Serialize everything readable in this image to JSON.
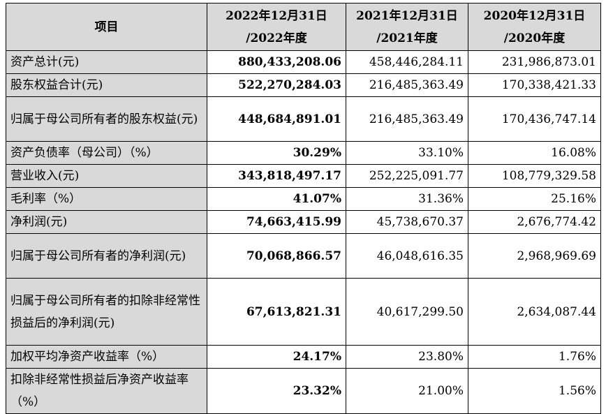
{
  "table": {
    "header": {
      "item": "项目",
      "col_2022_line1": "2022年12月31日",
      "col_2022_line2": "/2022年度",
      "col_2021_line1": "2021年12月31日",
      "col_2021_line2": "/2021年度",
      "col_2020_line1": "2020年12月31日",
      "col_2020_line2": "/2020年度"
    },
    "rows": [
      {
        "label": "资产总计(元)",
        "v2022": "880,433,208.06",
        "v2021": "458,446,284.11",
        "v2020": "231,986,873.01"
      },
      {
        "label": "股东权益合计(元)",
        "v2022": "522,270,284.03",
        "v2021": "216,485,363.49",
        "v2020": "170,338,421.33"
      },
      {
        "label": "归属于母公司所有者的股东权益(元)",
        "v2022": "448,684,891.01",
        "v2021": "216,485,363.49",
        "v2020": "170,436,747.14"
      },
      {
        "label": "资产负债率（母公司）（%）",
        "v2022": "30.29%",
        "v2021": "33.10%",
        "v2020": "16.08%"
      },
      {
        "label": "营业收入(元)",
        "v2022": "343,818,497.17",
        "v2021": "252,225,091.77",
        "v2020": "108,779,329.58"
      },
      {
        "label": "毛利率（%）",
        "v2022": "41.07%",
        "v2021": "31.36%",
        "v2020": "25.16%"
      },
      {
        "label": "净利润(元)",
        "v2022": "74,663,415.99",
        "v2021": "45,738,670.37",
        "v2020": "2,676,774.42"
      },
      {
        "label": "归属于母公司所有者的净利润(元)",
        "v2022": "70,068,866.57",
        "v2021": "46,048,616.35",
        "v2020": "2,968,969.69"
      },
      {
        "label": "归属于母公司所有者的扣除非经常性损益后的净利润(元)",
        "v2022": "67,613,821.31",
        "v2021": "40,617,299.50",
        "v2020": "2,634,087.44"
      },
      {
        "label": "加权平均净资产收益率（%）",
        "v2022": "24.17%",
        "v2021": "23.80%",
        "v2020": "1.76%"
      },
      {
        "label": "扣除非经常性损益后净资产收益率（%）",
        "v2022": "23.32%",
        "v2021": "21.00%",
        "v2020": "1.56%"
      }
    ]
  }
}
